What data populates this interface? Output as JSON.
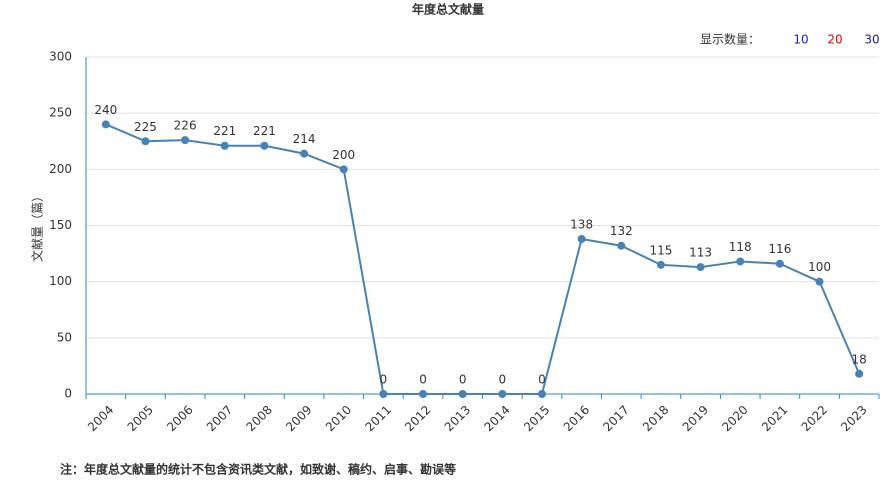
{
  "chart_data": {
    "type": "line",
    "title": "年度总文献量",
    "y_label": "文献量（篇）",
    "categories": [
      "2004",
      "2005",
      "2006",
      "2007",
      "2008",
      "2009",
      "2010",
      "2011",
      "2012",
      "2013",
      "2014",
      "2015",
      "2016",
      "2017",
      "2018",
      "2019",
      "2020",
      "2021",
      "2022",
      "2023"
    ],
    "values": [
      240,
      225,
      226,
      221,
      221,
      214,
      200,
      0,
      0,
      0,
      0,
      0,
      138,
      132,
      115,
      113,
      118,
      116,
      100,
      18
    ],
    "color": "#4682b4",
    "ylim": [
      0,
      300
    ],
    "yticks": [
      0,
      50,
      100,
      150,
      200,
      250,
      300
    ],
    "grid": true
  },
  "display_count": {
    "label": "显示数量：",
    "options": [
      10,
      20,
      30
    ]
  },
  "footnote": "注：年度总文献量的统计不包含资讯类文献，如致谢、稿约、启事、勘误等"
}
